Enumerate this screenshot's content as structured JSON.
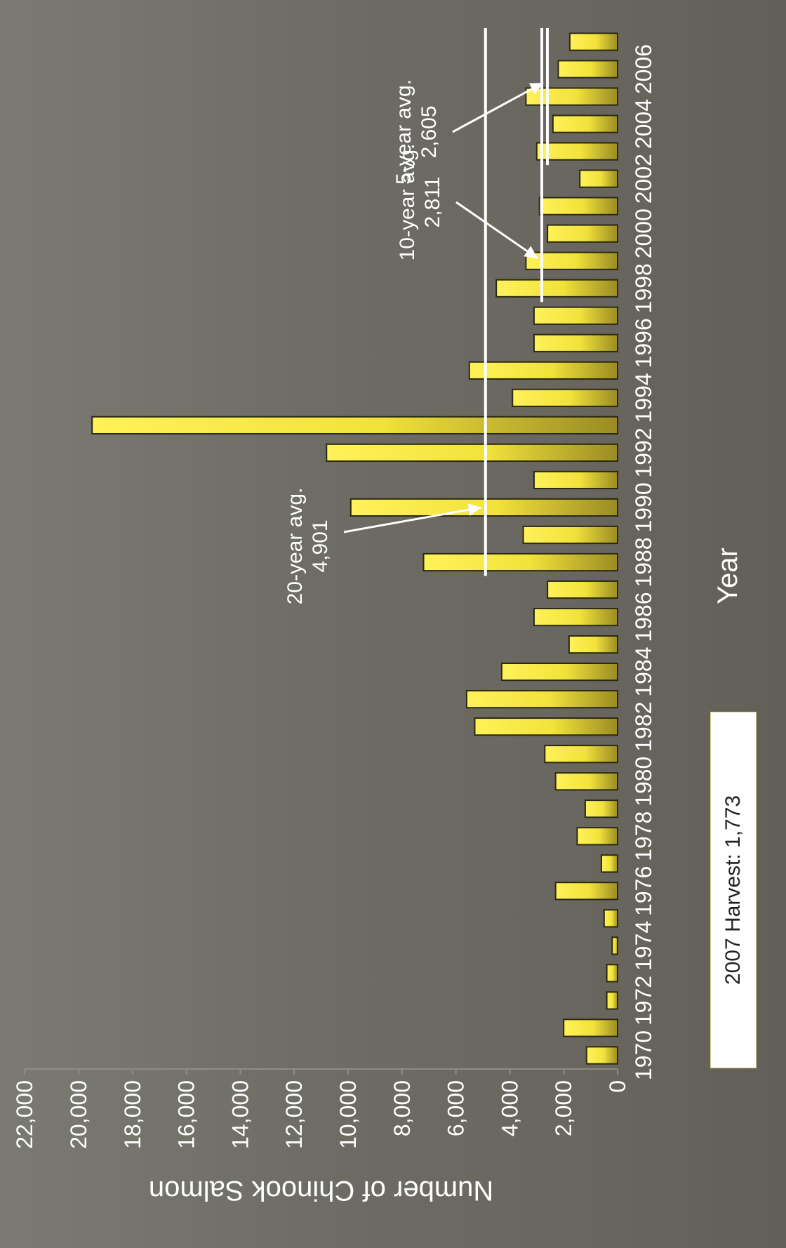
{
  "harvest_box": {
    "text": "2007 Harvest: 1,773"
  },
  "chart_data": {
    "type": "bar",
    "title": "",
    "xlabel": "Year",
    "ylabel": "Number of Chinook Salmon",
    "ylim": [
      0,
      22000
    ],
    "yticks": [
      0,
      2000,
      4000,
      6000,
      8000,
      10000,
      12000,
      14000,
      16000,
      18000,
      20000,
      22000
    ],
    "ytick_labels": [
      "0",
      "2,000",
      "4,000",
      "6,000",
      "8,000",
      "10,000",
      "12,000",
      "14,000",
      "16,000",
      "18,000",
      "20,000",
      "22,000"
    ],
    "categories": [
      1970,
      1971,
      1972,
      1973,
      1974,
      1975,
      1976,
      1977,
      1978,
      1979,
      1980,
      1981,
      1982,
      1983,
      1984,
      1985,
      1986,
      1987,
      1988,
      1989,
      1990,
      1991,
      1992,
      1993,
      1994,
      1995,
      1996,
      1997,
      1998,
      1999,
      2000,
      2001,
      2002,
      2003,
      2004,
      2005,
      2006,
      2007
    ],
    "xtick_labels": [
      "1970",
      "1972",
      "1974",
      "1976",
      "1978",
      "1980",
      "1982",
      "1984",
      "1986",
      "1988",
      "1990",
      "1992",
      "1994",
      "1996",
      "1998",
      "2000",
      "2002",
      "2004",
      "2006"
    ],
    "values": [
      1150,
      2000,
      400,
      400,
      200,
      500,
      2300,
      600,
      1500,
      1200,
      2300,
      2700,
      5300,
      5600,
      4300,
      1800,
      3100,
      2600,
      7200,
      3500,
      9900,
      3100,
      10800,
      19500,
      3900,
      5500,
      3100,
      3100,
      4500,
      3400,
      2600,
      2900,
      1400,
      3000,
      2400,
      3400,
      2200,
      1773
    ],
    "bar_color": "#f2e23a",
    "averages": [
      {
        "label": "20-year avg.",
        "value_text": "4,901",
        "value": 4901,
        "from": 1988,
        "to": 2007
      },
      {
        "label": "10-year avg.",
        "value_text": "2,811",
        "value": 2811,
        "from": 1998,
        "to": 2007
      },
      {
        "label": "5-year avg.",
        "value_text": "2,605",
        "value": 2605,
        "from": 2003,
        "to": 2007
      }
    ],
    "grid": false
  }
}
